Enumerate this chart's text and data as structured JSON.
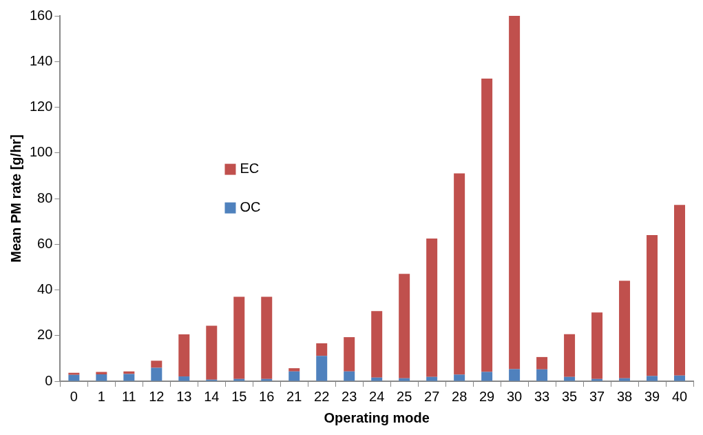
{
  "chart_data": {
    "type": "bar",
    "stacked": true,
    "xlabel": "Operating mode",
    "ylabel": "Mean PM rate [g/hr]",
    "categories": [
      "0",
      "1",
      "11",
      "12",
      "13",
      "14",
      "15",
      "16",
      "21",
      "22",
      "23",
      "24",
      "25",
      "27",
      "28",
      "29",
      "30",
      "33",
      "35",
      "37",
      "38",
      "39",
      "40"
    ],
    "series": [
      {
        "name": "OC",
        "color": "#4f81bd",
        "values": [
          2.8,
          3.0,
          3.2,
          5.9,
          2.1,
          0.7,
          1.0,
          1.0,
          4.3,
          11.1,
          4.3,
          1.6,
          1.3,
          1.9,
          2.9,
          4.1,
          5.3,
          5.2,
          1.9,
          1.0,
          1.3,
          2.3,
          2.5
        ]
      },
      {
        "name": "EC",
        "color": "#c0504d",
        "values": [
          0.9,
          1.1,
          1.1,
          3.1,
          18.4,
          23.6,
          36,
          36,
          1.4,
          5.5,
          15.0,
          29.1,
          45.7,
          60.6,
          88.1,
          128.4,
          154.7,
          5.4,
          18.7,
          29.1,
          42.7,
          61.7,
          74.7
        ]
      }
    ],
    "ylim": [
      0,
      160
    ],
    "yticks": [
      0,
      20,
      40,
      60,
      80,
      100,
      120,
      140,
      160
    ],
    "grid": false,
    "legend": "left"
  }
}
